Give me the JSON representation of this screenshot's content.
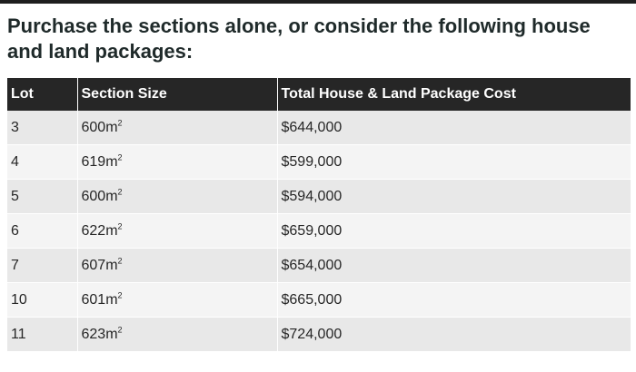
{
  "heading": "Purchase the sections alone, or consider the following house and land packages:",
  "table": {
    "headers": [
      "Lot",
      "Section Size",
      "Total House & Land Package Cost"
    ],
    "size_unit": "m",
    "size_unit_sup": "2",
    "rows": [
      {
        "lot": "3",
        "size": "600",
        "cost": "$644,000"
      },
      {
        "lot": "4",
        "size": "619",
        "cost": "$599,000"
      },
      {
        "lot": "5",
        "size": "600",
        "cost": "$594,000"
      },
      {
        "lot": "6",
        "size": "622",
        "cost": "$659,000"
      },
      {
        "lot": "7",
        "size": "607",
        "cost": "$654,000"
      },
      {
        "lot": "10",
        "size": "601",
        "cost": "$665,000"
      },
      {
        "lot": "11",
        "size": "623",
        "cost": "$724,000"
      }
    ]
  },
  "colors": {
    "header_bg": "#262626",
    "row_odd": "#e8e8e8",
    "row_even": "#f4f4f4",
    "heading_text": "#1f2a2a"
  }
}
